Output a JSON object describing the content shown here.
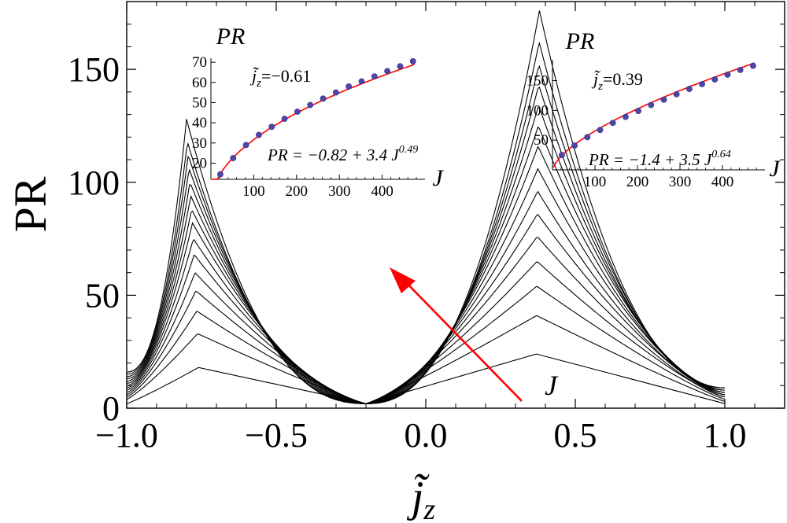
{
  "chart_data": {
    "type": "line",
    "main": {
      "xlabel": "j̃",
      "xlabel_sub": "z",
      "ylabel": "PR",
      "xlim": [
        -1.0,
        1.2
      ],
      "ylim": [
        0,
        180
      ],
      "xticks": [
        -1.0,
        -0.5,
        0.0,
        0.5,
        1.0
      ],
      "xtick_labels": [
        "−1.0",
        "−0.5",
        "0.0",
        "0.5",
        "1.0"
      ],
      "yticks": [
        0,
        50,
        100,
        150
      ],
      "ytick_labels": [
        "0",
        "50",
        "100",
        "150"
      ],
      "arrow_label": "J",
      "series_count": 15,
      "left_peaks": [
        18,
        33,
        43,
        52,
        60,
        68,
        75,
        82,
        88,
        94,
        100,
        106,
        112,
        118,
        128
      ],
      "right_peaks": [
        24,
        41,
        54,
        65,
        76,
        86,
        96,
        106,
        116,
        125,
        134,
        143,
        152,
        162,
        176
      ],
      "valley": 2,
      "edge_left": [
        2,
        4,
        5,
        6,
        7,
        8,
        9,
        10,
        11,
        12,
        13,
        14,
        15,
        16,
        16
      ],
      "edge_right": [
        2,
        3,
        4,
        5,
        5,
        6,
        6,
        7,
        7,
        8,
        8,
        8,
        9,
        9,
        9
      ]
    },
    "insets": [
      {
        "title": "PR",
        "xlabel": "J",
        "param_label": "j̃",
        "param_sub": "z",
        "param_value": "=−0.61",
        "fit_prefix": "PR = −0.82 +  3.4 J",
        "fit_exp": "0.49",
        "xlim": [
          0,
          500
        ],
        "ylim": [
          12,
          72
        ],
        "xticks": [
          100,
          200,
          300,
          400
        ],
        "yticks": [
          20,
          30,
          40,
          50,
          60,
          70
        ],
        "x": [
          22,
          52,
          82,
          112,
          142,
          172,
          202,
          232,
          262,
          292,
          322,
          352,
          382,
          412,
          442,
          472
        ],
        "y": [
          14.5,
          22.5,
          29,
          34,
          38,
          42,
          45.5,
          48.8,
          52,
          55,
          58,
          60.5,
          63,
          65.6,
          68,
          70.5
        ],
        "fit": {
          "a": -0.82,
          "b": 3.4,
          "c": 0.49
        }
      },
      {
        "title": "PR",
        "xlabel": "J",
        "param_label": "j̃",
        "param_sub": "z",
        "param_value": "=0.39",
        "fit_prefix": "PR = −1.4 +  3.5 J",
        "fit_exp": "0.64",
        "xlim": [
          0,
          500
        ],
        "ylim": [
          0,
          185
        ],
        "xticks": [
          100,
          200,
          300,
          400
        ],
        "yticks": [
          50,
          100,
          150
        ],
        "x": [
          22,
          52,
          82,
          112,
          142,
          172,
          202,
          232,
          262,
          292,
          322,
          352,
          382,
          412,
          442,
          472
        ],
        "y": [
          25,
          41,
          55,
          67,
          79,
          89,
          99,
          109,
          118,
          127,
          136,
          144,
          152,
          160,
          168,
          175
        ],
        "fit": {
          "a": -1.4,
          "b": 3.5,
          "c": 0.64
        }
      }
    ]
  }
}
